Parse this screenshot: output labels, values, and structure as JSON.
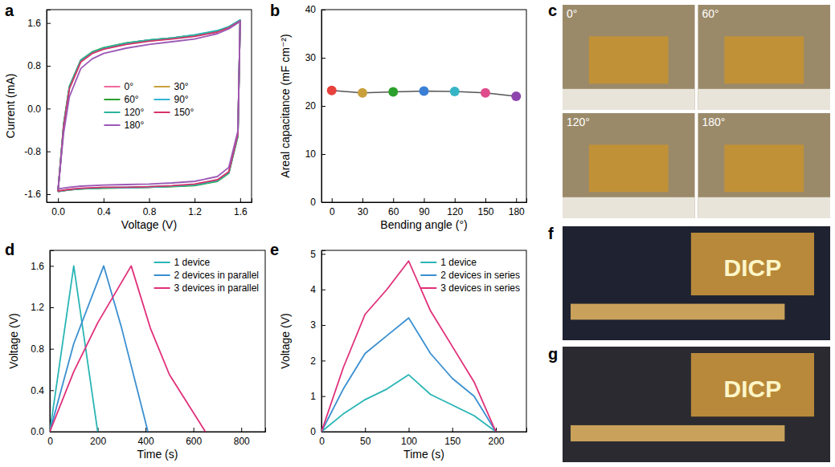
{
  "chart_data": [
    {
      "type": "line",
      "panel": "a",
      "x_label": "Voltage (V)",
      "y_label": "Current (mA)",
      "xlim": [
        -0.1,
        1.7
      ],
      "ylim": [
        -1.75,
        1.85
      ],
      "xticks": [
        {
          "value": 0,
          "label": "0.0"
        },
        0.4,
        0.8,
        1.2,
        1.6
      ],
      "yticks": [
        -1.6,
        -0.8,
        {
          "value": 0,
          "label": "0.0"
        },
        0.8,
        1.6
      ],
      "legend": "center",
      "x": [
        0,
        0.05,
        0.1,
        0.2,
        0.3,
        0.4,
        0.6,
        0.8,
        1.0,
        1.2,
        1.4,
        1.5,
        1.6,
        1.58,
        1.5,
        1.4,
        1.2,
        1.0,
        0.8,
        0.6,
        0.4,
        0.2,
        0.1,
        0
      ],
      "series": [
        {
          "name": "0°",
          "color": "#ef6a9a",
          "values": [
            -1.55,
            -0.3,
            0.4,
            0.9,
            1.05,
            1.13,
            1.22,
            1.28,
            1.32,
            1.37,
            1.45,
            1.52,
            1.65,
            -0.5,
            -1.2,
            -1.35,
            -1.43,
            -1.45,
            -1.47,
            -1.48,
            -1.48,
            -1.5,
            -1.52,
            -1.55
          ]
        },
        {
          "name": "30°",
          "color": "#c9a03c",
          "values": [
            -1.55,
            -0.32,
            0.38,
            0.88,
            1.04,
            1.12,
            1.21,
            1.27,
            1.31,
            1.36,
            1.44,
            1.52,
            1.65,
            -0.5,
            -1.2,
            -1.35,
            -1.43,
            -1.45,
            -1.47,
            -1.48,
            -1.48,
            -1.5,
            -1.52,
            -1.55
          ]
        },
        {
          "name": "60°",
          "color": "#2ca02c",
          "values": [
            -1.55,
            -0.28,
            0.42,
            0.91,
            1.06,
            1.14,
            1.23,
            1.28,
            1.32,
            1.37,
            1.45,
            1.53,
            1.65,
            -0.52,
            -1.21,
            -1.36,
            -1.44,
            -1.46,
            -1.47,
            -1.48,
            -1.49,
            -1.5,
            -1.52,
            -1.55
          ]
        },
        {
          "name": "90°",
          "color": "#36b5d6",
          "values": [
            -1.55,
            -0.3,
            0.4,
            0.9,
            1.05,
            1.13,
            1.22,
            1.28,
            1.32,
            1.38,
            1.46,
            1.53,
            1.66,
            -0.5,
            -1.2,
            -1.35,
            -1.43,
            -1.45,
            -1.47,
            -1.48,
            -1.48,
            -1.5,
            -1.52,
            -1.55
          ]
        },
        {
          "name": "120°",
          "color": "#2ab59a",
          "values": [
            -1.55,
            -0.31,
            0.39,
            0.89,
            1.05,
            1.13,
            1.22,
            1.28,
            1.32,
            1.37,
            1.45,
            1.52,
            1.65,
            -0.5,
            -1.2,
            -1.35,
            -1.43,
            -1.45,
            -1.46,
            -1.47,
            -1.48,
            -1.5,
            -1.51,
            -1.55
          ]
        },
        {
          "name": "150°",
          "color": "#d6336c",
          "values": [
            -1.55,
            -0.33,
            0.37,
            0.87,
            1.03,
            1.11,
            1.2,
            1.26,
            1.3,
            1.35,
            1.43,
            1.51,
            1.64,
            -0.48,
            -1.18,
            -1.33,
            -1.41,
            -1.44,
            -1.46,
            -1.47,
            -1.47,
            -1.49,
            -1.51,
            -1.54
          ]
        },
        {
          "name": "180°",
          "color": "#9b59b6",
          "values": [
            -1.52,
            -0.45,
            0.22,
            0.75,
            0.93,
            1.03,
            1.13,
            1.2,
            1.25,
            1.3,
            1.4,
            1.49,
            1.63,
            -0.42,
            -1.1,
            -1.27,
            -1.36,
            -1.39,
            -1.41,
            -1.42,
            -1.43,
            -1.45,
            -1.47,
            -1.5
          ]
        }
      ]
    },
    {
      "type": "line",
      "panel": "b",
      "x_label": "Bending angle (°)",
      "y_label": "Areal capacitance (mF cm⁻²)",
      "xlim": [
        -10,
        190
      ],
      "ylim": [
        0,
        40
      ],
      "xticks": [
        0,
        30,
        60,
        90,
        120,
        150,
        180
      ],
      "yticks": [
        0,
        10,
        20,
        30,
        40
      ],
      "x": [
        0,
        30,
        60,
        90,
        120,
        150,
        180
      ],
      "values": [
        23.2,
        22.7,
        22.9,
        23.1,
        23.0,
        22.7,
        22.0
      ],
      "color": "#555555",
      "colors": [
        "#e8403c",
        "#c9a03c",
        "#2ca02c",
        "#3a7fd5",
        "#36b5c6",
        "#e04b8c",
        "#8e44ad"
      ],
      "marker": "circle"
    },
    {
      "type": "line",
      "panel": "d",
      "x_label": "Time (s)",
      "y_label": "Voltage (V)",
      "xlim": [
        0,
        900
      ],
      "ylim": [
        0,
        1.75
      ],
      "xticks": [
        0,
        200,
        400,
        600,
        800
      ],
      "yticks": [
        {
          "value": 0,
          "label": "0.0"
        },
        0.4,
        0.8,
        1.2,
        1.6
      ],
      "legend": "upper right",
      "series": [
        {
          "name": "1 device",
          "color": "#2ab5b5",
          "x": [
            0,
            100,
            200
          ],
          "values": [
            0,
            1.6,
            0
          ]
        },
        {
          "name": "2 devices in parallel",
          "color": "#3a8fd0",
          "x": [
            0,
            100,
            225,
            300,
            410
          ],
          "values": [
            0,
            0.85,
            1.6,
            1.0,
            0
          ]
        },
        {
          "name": "3 devices in parallel",
          "color": "#e0307a",
          "x": [
            0,
            100,
            200,
            340,
            420,
            500,
            650
          ],
          "values": [
            0,
            0.58,
            1.05,
            1.6,
            1.0,
            0.55,
            0
          ]
        }
      ]
    },
    {
      "type": "line",
      "panel": "e",
      "x_label": "Time (s)",
      "y_label": "Voltage (V)",
      "xlim": [
        0,
        235
      ],
      "ylim": [
        0,
        5.1
      ],
      "xticks": [
        0,
        50,
        100,
        150,
        200
      ],
      "yticks": [
        0,
        1,
        2,
        3,
        4,
        5
      ],
      "legend": "upper right",
      "x": [
        0,
        25,
        50,
        75,
        100,
        125,
        150,
        175,
        200
      ],
      "series": [
        {
          "name": "1 device",
          "color": "#2ab5b5",
          "values": [
            0,
            0.5,
            0.9,
            1.2,
            1.6,
            1.05,
            0.75,
            0.45,
            0
          ]
        },
        {
          "name": "2 devices in series",
          "color": "#3a8fd0",
          "values": [
            0,
            1.2,
            2.2,
            2.7,
            3.2,
            2.2,
            1.5,
            1.0,
            0
          ]
        },
        {
          "name": "3 devices in series",
          "color": "#e0307a",
          "values": [
            0,
            1.8,
            3.3,
            4.0,
            4.8,
            3.4,
            2.4,
            1.4,
            0
          ]
        }
      ]
    }
  ],
  "photos": [
    {
      "panel": "c",
      "labels": [
        "0°",
        "60°",
        "120°",
        "180°"
      ]
    },
    {
      "panel": "f",
      "labels": [
        "DICP"
      ]
    },
    {
      "panel": "g",
      "labels": [
        "DICP"
      ]
    }
  ]
}
